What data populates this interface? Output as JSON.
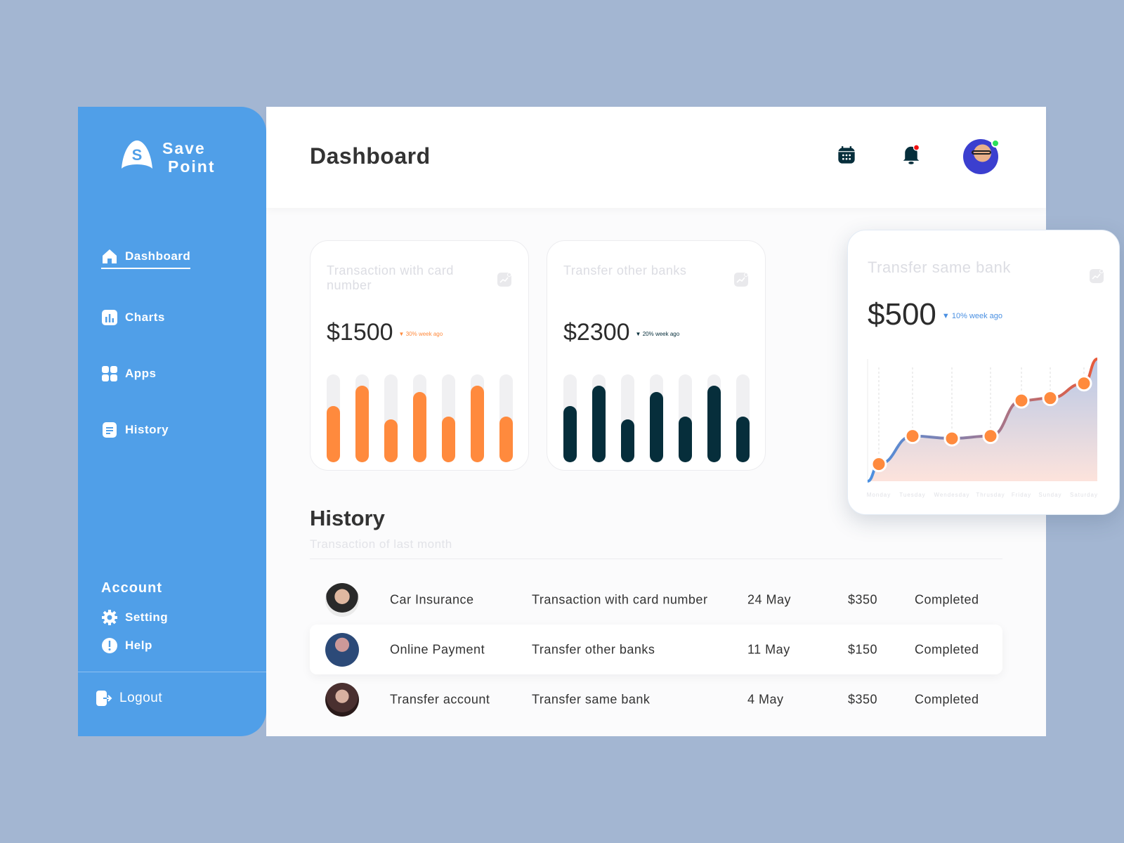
{
  "brand": {
    "line1": "Save",
    "line2": "Point",
    "logo_letter": "S"
  },
  "sidebar": {
    "items": [
      {
        "label": "Dashboard",
        "icon": "home-icon",
        "active": true
      },
      {
        "label": "Charts",
        "icon": "bar-chart-icon"
      },
      {
        "label": "Apps",
        "icon": "grid-icon"
      },
      {
        "label": "History",
        "icon": "document-icon"
      }
    ],
    "account_heading": "Account",
    "account_items": [
      {
        "label": "Setting",
        "icon": "gear-icon"
      },
      {
        "label": "Help",
        "icon": "help-icon"
      }
    ],
    "logout": "Logout"
  },
  "header": {
    "title": "Dashboard",
    "icons": [
      "calendar-icon",
      "bell-icon",
      "avatar"
    ]
  },
  "cards": [
    {
      "title": "Transaction with card number",
      "amount": "$1500",
      "trend": "30% week ago",
      "color": "#ff8a3d",
      "track": "#f0f0f2"
    },
    {
      "title": "Transfer other banks",
      "amount": "$2300",
      "trend": "20% week ago",
      "color": "#062e3b",
      "track": "#f0f0f2"
    },
    {
      "title": "Transfer same bank",
      "amount": "$500",
      "trend": "10% week ago",
      "color": "#4a90e2"
    }
  ],
  "chart_data": [
    {
      "type": "bar",
      "values": [
        0.64,
        0.87,
        0.49,
        0.8,
        0.52,
        0.87,
        0.52
      ],
      "color": "#ff8a3d"
    },
    {
      "type": "bar",
      "values": [
        0.64,
        0.87,
        0.49,
        0.8,
        0.52,
        0.87,
        0.52
      ],
      "color": "#062e3b"
    },
    {
      "type": "area",
      "categories": [
        "Monday",
        "Tuesday",
        "Wendesday",
        "Thrusday",
        "Friday",
        "Sunday",
        "Saturday"
      ],
      "values": [
        14,
        37,
        35,
        37,
        66,
        68,
        80
      ],
      "grid": "vertical dashed",
      "point_color": "#ff8a3d"
    }
  ],
  "history": {
    "title": "History",
    "subtitle": "Transaction of last month",
    "rows": [
      {
        "name": "Car Insurance",
        "desc": "Transaction with card number",
        "date": "24 May",
        "amount": "$350",
        "status": "Completed"
      },
      {
        "name": "Online Payment",
        "desc": "Transfer other banks",
        "date": "11 May",
        "amount": "$150",
        "status": "Completed",
        "highlight": true
      },
      {
        "name": "Transfer account",
        "desc": "Transfer same bank",
        "date": "4 May",
        "amount": "$350",
        "status": "Completed"
      }
    ]
  }
}
